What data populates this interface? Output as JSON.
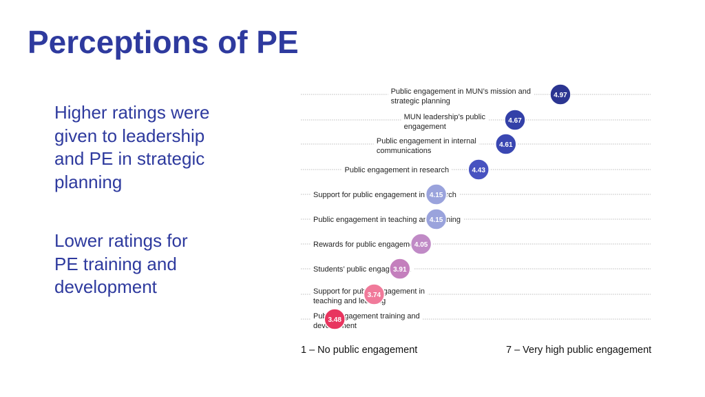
{
  "slide": {
    "title": "Perceptions of PE",
    "bullets": [
      "Higher ratings were given to leadership and PE in strategic planning",
      "Lower ratings for PE training and development"
    ]
  },
  "chart_data": {
    "type": "scatter",
    "title": "",
    "xlabel": "",
    "ylabel": "",
    "x_range_labels": {
      "min": "1 – No public engagement",
      "max": "7 – Very high public engagement"
    },
    "grid": "horizontal dotted lines per category",
    "legend": "none",
    "categories": [
      {
        "label": [
          "Public engagement in MUN’s mission and",
          "strategic planning"
        ],
        "value": 4.97,
        "display": "4.97",
        "color": "#2b3591"
      },
      {
        "label": [
          "MUN leadership’s public",
          "engagement"
        ],
        "value": 4.67,
        "display": "4.67",
        "color": "#3340a8"
      },
      {
        "label": [
          "Public engagement in internal",
          "communications"
        ],
        "value": 4.61,
        "display": "4.61",
        "color": "#3a47b2"
      },
      {
        "label": [
          "Public engagement in research"
        ],
        "value": 4.43,
        "display": "4.43",
        "color": "#4752c0"
      },
      {
        "label": [
          "Support for public engagement in research"
        ],
        "value": 4.15,
        "display": "4.15",
        "color": "#9aa3dc"
      },
      {
        "label": [
          "Public engagement in teaching and learning"
        ],
        "value": 4.15,
        "display": "4.15",
        "color": "#9aa3dc"
      },
      {
        "label": [
          "Rewards for public engagement"
        ],
        "value": 4.05,
        "display": "4.05",
        "color": "#c08ac6"
      },
      {
        "label": [
          "Students’ public engagement"
        ],
        "value": 3.91,
        "display": "3.91",
        "color": "#c47fbd"
      },
      {
        "label": [
          "Support for public engagement in",
          "teaching and learning"
        ],
        "value": 3.74,
        "display": "3.74",
        "color": "#f07a9a"
      },
      {
        "label": [
          "Public engagement training and",
          "development"
        ],
        "value": 3.48,
        "display": "3.48",
        "color": "#e8355f"
      }
    ],
    "colors": {
      "title": "#2e3a9e",
      "gridline": "#bdbdbd"
    }
  }
}
